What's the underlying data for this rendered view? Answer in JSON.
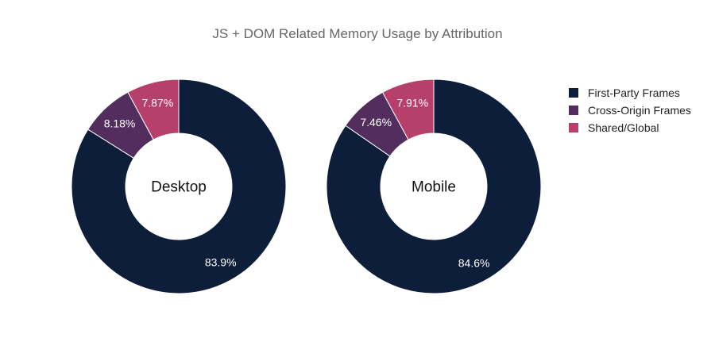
{
  "chart_data": {
    "type": "pie",
    "title": "JS + DOM Related Memory Usage by Attribution",
    "legend_position": "right",
    "categories": [
      "First-Party Frames",
      "Cross-Origin Frames",
      "Shared/Global"
    ],
    "colors": [
      "#0d1e3b",
      "#532d5d",
      "#b73f6c"
    ],
    "series": [
      {
        "name": "Desktop",
        "values": [
          83.9,
          8.18,
          7.87
        ],
        "labels": [
          "83.9%",
          "8.18%",
          "7.87%"
        ]
      },
      {
        "name": "Mobile",
        "values": [
          84.6,
          7.46,
          7.91
        ],
        "labels": [
          "84.6%",
          "7.46%",
          "7.91%"
        ]
      }
    ]
  }
}
